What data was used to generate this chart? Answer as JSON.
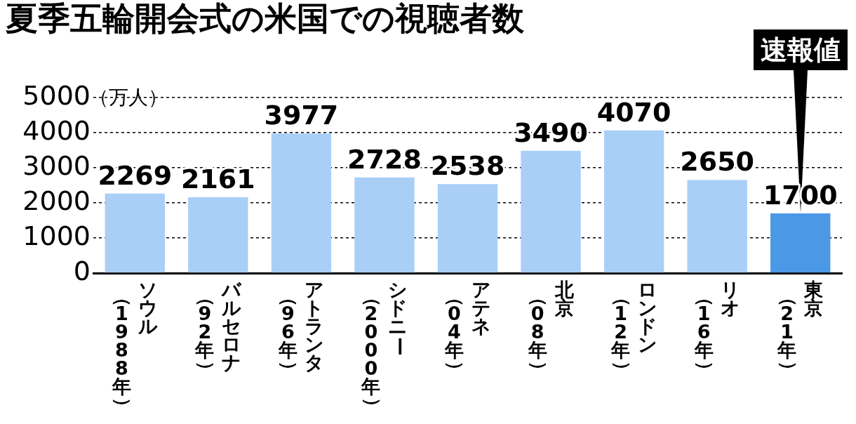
{
  "chart_data": {
    "type": "bar",
    "title": "夏季五輪開会式の米国での視聴者数",
    "ylabel": "（万人）",
    "categories": [
      "ソウル（1988年）",
      "バルセロナ（92年）",
      "アトランタ（96年）",
      "シドニー（2000年）",
      "アテネ（04年）",
      "北京（08年）",
      "ロンドン（12年）",
      "リオ（16年）",
      "東京（21年）"
    ],
    "values": [
      2269,
      2161,
      3977,
      2728,
      2538,
      3490,
      4070,
      2650,
      1700
    ],
    "colors": [
      "#a9cff7",
      "#a9cff7",
      "#a9cff7",
      "#a9cff7",
      "#a9cff7",
      "#a9cff7",
      "#a9cff7",
      "#a9cff7",
      "#4a98e6"
    ],
    "ylim": [
      0,
      5000
    ],
    "yticks": [
      0,
      1000,
      2000,
      3000,
      4000,
      5000
    ],
    "grid": "y",
    "data_labels": true,
    "annotations": [
      {
        "text": "速報値",
        "x": "東京（21年）",
        "y": 1700
      }
    ]
  }
}
